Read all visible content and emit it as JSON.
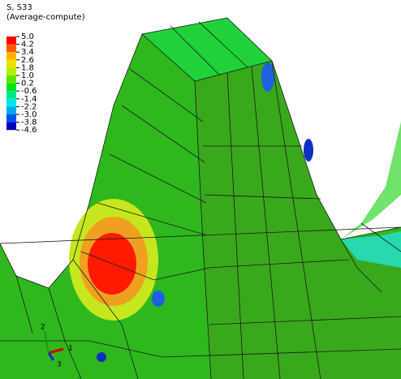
{
  "legend": {
    "title": "S, S33",
    "subtitle": "(Average-compute)",
    "labels": [
      "5.0",
      "4.2",
      "3.4",
      "2.6",
      "1.8",
      "1.0",
      "0.2",
      "-0.6",
      "-1.4",
      "-2.2",
      "-3.0",
      "-3.8",
      "-4.6"
    ],
    "colors": [
      "#ff0000",
      "#ff5a00",
      "#ffb400",
      "#f0e000",
      "#b4f000",
      "#5ae600",
      "#00e614",
      "#00e68c",
      "#00e6e6",
      "#00aaf0",
      "#0050f0",
      "#0000c8"
    ]
  },
  "triad": {
    "axes": [
      "1",
      "2",
      "3"
    ]
  }
}
